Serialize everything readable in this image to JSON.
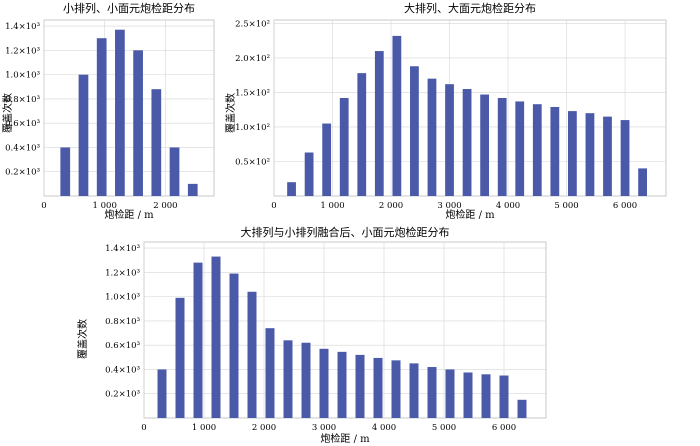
{
  "chart_data": [
    {
      "type": "bar",
      "title": "小排列、小面元炮检距分布",
      "xlabel": "炮检距 / m",
      "ylabel": "覆盖次数",
      "x": [
        350,
        650,
        950,
        1250,
        1550,
        1850,
        2150,
        2450
      ],
      "values": [
        400,
        1000,
        1300,
        1370,
        1200,
        880,
        400,
        100
      ],
      "xlim": [
        0,
        2800
      ],
      "ylim": [
        0,
        1450
      ],
      "xticks": [
        0,
        1000,
        2000
      ],
      "xtick_labels": [
        "0",
        "1 000",
        "2 000"
      ],
      "yticks": [
        200,
        400,
        600,
        800,
        1000,
        1200,
        1400
      ],
      "ytick_labels": [
        "0.2×10³",
        "0.4×10³",
        "0.6×10³",
        "0.8×10³",
        "1.0×10³",
        "1.2×10³",
        "1.4×10³"
      ],
      "bar_width": 160,
      "color": "#4a5aa8",
      "grid": true
    },
    {
      "type": "bar",
      "title": "大排列、大面元炮检距分布",
      "xlabel": "炮检距 / m",
      "ylabel": "覆盖次数",
      "x": [
        300,
        600,
        900,
        1200,
        1500,
        1800,
        2100,
        2400,
        2700,
        3000,
        3300,
        3600,
        3900,
        4200,
        4500,
        4800,
        5100,
        5400,
        5700,
        6000,
        6300
      ],
      "values": [
        20,
        63,
        105,
        142,
        178,
        210,
        232,
        188,
        170,
        162,
        155,
        147,
        142,
        137,
        133,
        129,
        123,
        120,
        115,
        110,
        40
      ],
      "xlim": [
        0,
        6700
      ],
      "ylim": [
        0,
        255
      ],
      "xticks": [
        0,
        1000,
        2000,
        3000,
        4000,
        5000,
        6000
      ],
      "xtick_labels": [
        "0",
        "1 000",
        "2 000",
        "3 000",
        "4 000",
        "5 000",
        "6 000"
      ],
      "yticks": [
        50,
        100,
        150,
        200,
        250
      ],
      "ytick_labels": [
        "0.5×10²",
        "1.0×10²",
        "1.5×10²",
        "2.0×10²",
        "2.5×10²"
      ],
      "bar_width": 150,
      "color": "#4a5aa8",
      "grid": true
    },
    {
      "type": "bar",
      "title": "大排列与小排列融合后、小面元炮检距分布",
      "xlabel": "炮检距 / m",
      "ylabel": "覆盖次数",
      "x": [
        300,
        600,
        900,
        1200,
        1500,
        1800,
        2100,
        2400,
        2700,
        3000,
        3300,
        3600,
        3900,
        4200,
        4500,
        4800,
        5100,
        5400,
        5700,
        6000,
        6300
      ],
      "values": [
        400,
        990,
        1280,
        1330,
        1190,
        1040,
        740,
        640,
        620,
        570,
        545,
        520,
        495,
        475,
        450,
        420,
        400,
        375,
        360,
        350,
        150
      ],
      "xlim": [
        0,
        6700
      ],
      "ylim": [
        0,
        1450
      ],
      "xticks": [
        0,
        1000,
        2000,
        3000,
        4000,
        5000,
        6000
      ],
      "xtick_labels": [
        "0",
        "1 000",
        "2 000",
        "3 000",
        "4 000",
        "5 000",
        "6 000"
      ],
      "yticks": [
        200,
        400,
        600,
        800,
        1000,
        1200,
        1400
      ],
      "ytick_labels": [
        "0.2×10³",
        "0.4×10³",
        "0.6×10³",
        "0.8×10³",
        "1.0×10³",
        "1.2×10³",
        "1.4×10³"
      ],
      "bar_width": 150,
      "color": "#4a5aa8",
      "grid": true
    }
  ]
}
